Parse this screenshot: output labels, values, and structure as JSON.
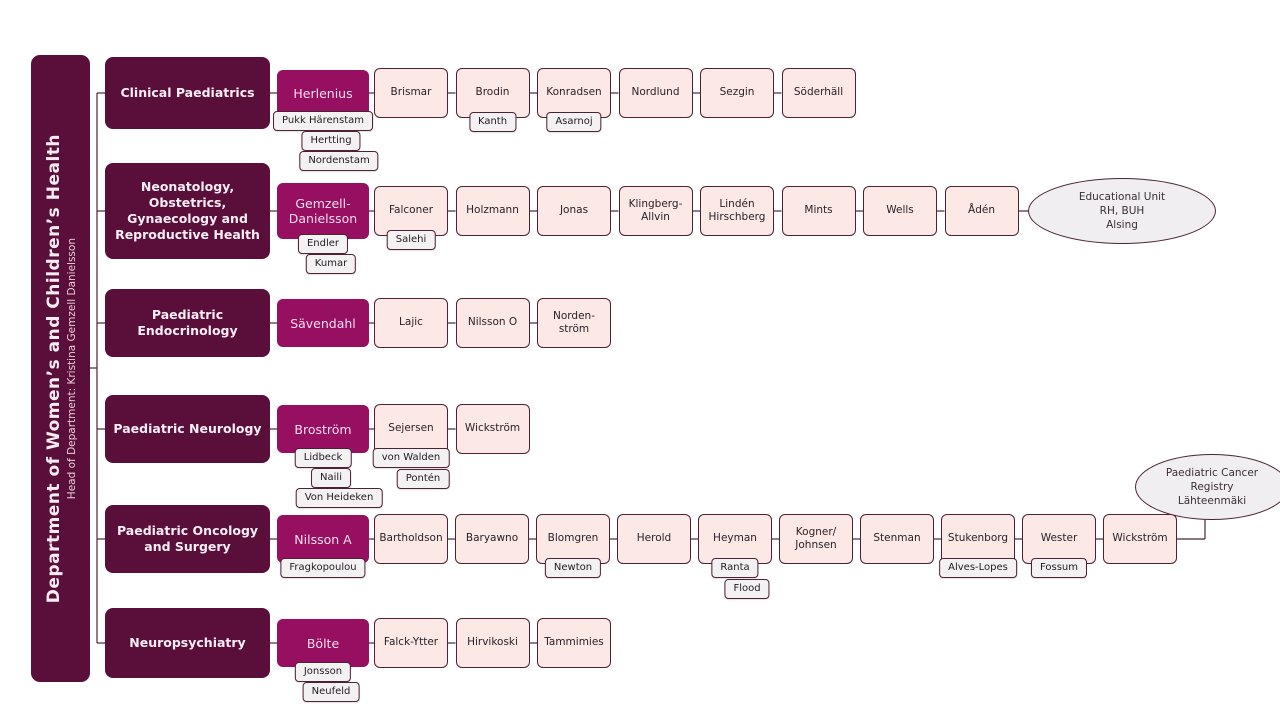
{
  "sidebar": {
    "title": "Department of Women’s and Children’s Health",
    "subtitle": "Head of Department: Kristina Gemzell Danielsson"
  },
  "colors": {
    "dark_maroon": "#5a0e3a",
    "accent_magenta": "#970f60",
    "member_fill": "#fce9e5",
    "sub_fill": "#f4f1f3",
    "ellipse_fill": "#f0eef0",
    "connector_line": "#4a2433"
  },
  "rows": [
    {
      "department": "Clinical Paediatrics",
      "leader": {
        "name": "Herlenius",
        "subs": [
          "Pukk Härenstam",
          "Hertting",
          "Nordenstam"
        ]
      },
      "members": [
        {
          "name": "Brismar"
        },
        {
          "name": "Brodin",
          "subs": [
            "Kanth"
          ]
        },
        {
          "name": "Konradsen",
          "subs": [
            "Asarnoj"
          ]
        },
        {
          "name": "Nordlund"
        },
        {
          "name": "Sezgin"
        },
        {
          "name": "Söderhäll"
        }
      ]
    },
    {
      "department": "Neonatology, Obstetrics, Gynaecology and Reproductive Health",
      "leader": {
        "name": "Gemzell-Danielsson",
        "subs": [
          "Endler",
          "Kumar"
        ]
      },
      "members": [
        {
          "name": "Falconer",
          "subs": [
            "Salehi"
          ]
        },
        {
          "name": "Holzmann"
        },
        {
          "name": "Jonas"
        },
        {
          "name": "Klingberg-Allvin"
        },
        {
          "name": "Lindén Hirschberg"
        },
        {
          "name": "Mints"
        },
        {
          "name": "Wells"
        },
        {
          "name": "Ådén"
        }
      ],
      "ellipse": {
        "lines": [
          "Educational Unit",
          "RH, BUH",
          "Alsing"
        ]
      }
    },
    {
      "department": "Paediatric Endocrinology",
      "leader": {
        "name": "Sävendahl",
        "subs": []
      },
      "members": [
        {
          "name": "Lajic"
        },
        {
          "name": "Nilsson O"
        },
        {
          "name": "Norden-ström"
        }
      ]
    },
    {
      "department": "Paediatric Neurology",
      "leader": {
        "name": "Broström",
        "subs": [
          "Lidbeck",
          "Naili",
          "Von Heideken"
        ]
      },
      "members": [
        {
          "name": "Sejersen",
          "subs": [
            "von Walden",
            "Pontén"
          ]
        },
        {
          "name": "Wickström"
        }
      ]
    },
    {
      "department": "Paediatric Oncology and Surgery",
      "leader": {
        "name": "Nilsson A",
        "subs": [
          "Fragkopoulou"
        ]
      },
      "members": [
        {
          "name": "Bartholdson"
        },
        {
          "name": "Baryawno"
        },
        {
          "name": "Blomgren",
          "subs": [
            "Newton"
          ]
        },
        {
          "name": "Herold"
        },
        {
          "name": "Heyman",
          "subs": [
            "Ranta",
            "Flood"
          ]
        },
        {
          "name": "Kogner/Johnsen"
        },
        {
          "name": "Stenman"
        },
        {
          "name": "Stukenborg",
          "subs": [
            "Alves-Lopes"
          ]
        },
        {
          "name": "Wester",
          "subs": [
            "Fossum"
          ]
        },
        {
          "name": "Wickström"
        }
      ],
      "ellipse": {
        "lines": [
          "Paediatric Cancer",
          "Registry",
          "Lähteenmäki"
        ]
      }
    },
    {
      "department": "Neuropsychiatry",
      "leader": {
        "name": "Bölte",
        "subs": [
          "Jonsson",
          "Neufeld"
        ]
      },
      "members": [
        {
          "name": "Falck-Ytter"
        },
        {
          "name": "Hirvikoski"
        },
        {
          "name": "Tammimies"
        }
      ]
    }
  ]
}
